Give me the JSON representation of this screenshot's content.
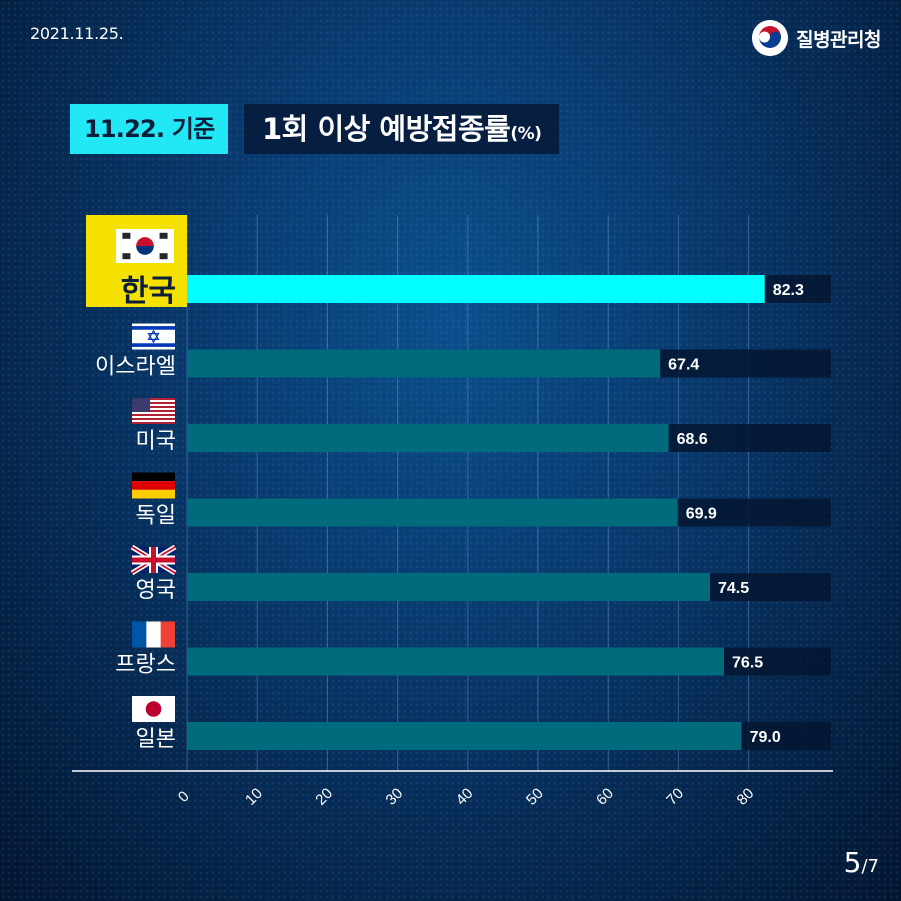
{
  "header": {
    "date": "2021.11.25.",
    "org_name": "질병관리청"
  },
  "title": {
    "tag": "11.22. 기준",
    "main": "1회 이상 예방접종률",
    "unit": "(%)"
  },
  "pagination": {
    "current": "5",
    "total": "/7"
  },
  "colors": {
    "highlight_bar": "#00ffff",
    "bar": "#006b7c",
    "highlight_label_bg": "#f5e100",
    "track": "#031631"
  },
  "chart_data": {
    "type": "bar",
    "orientation": "horizontal",
    "categories": [
      "한국",
      "이스라엘",
      "미국",
      "독일",
      "영국",
      "프랑스",
      "일본"
    ],
    "flags": [
      "korea-flag-icon",
      "israel-flag-icon",
      "usa-flag-icon",
      "germany-flag-icon",
      "uk-flag-icon",
      "france-flag-icon",
      "japan-flag-icon"
    ],
    "values": [
      82.3,
      67.4,
      68.6,
      69.9,
      74.5,
      76.5,
      79.0
    ],
    "value_labels": [
      "82.3",
      "67.4",
      "68.6",
      "69.9",
      "74.5",
      "76.5",
      "79.0"
    ],
    "highlight_index": 0,
    "x_ticks": [
      "0",
      "10",
      "20",
      "30",
      "40",
      "50",
      "60",
      "70",
      "80"
    ],
    "xlim": [
      0,
      92
    ],
    "grid": true
  }
}
